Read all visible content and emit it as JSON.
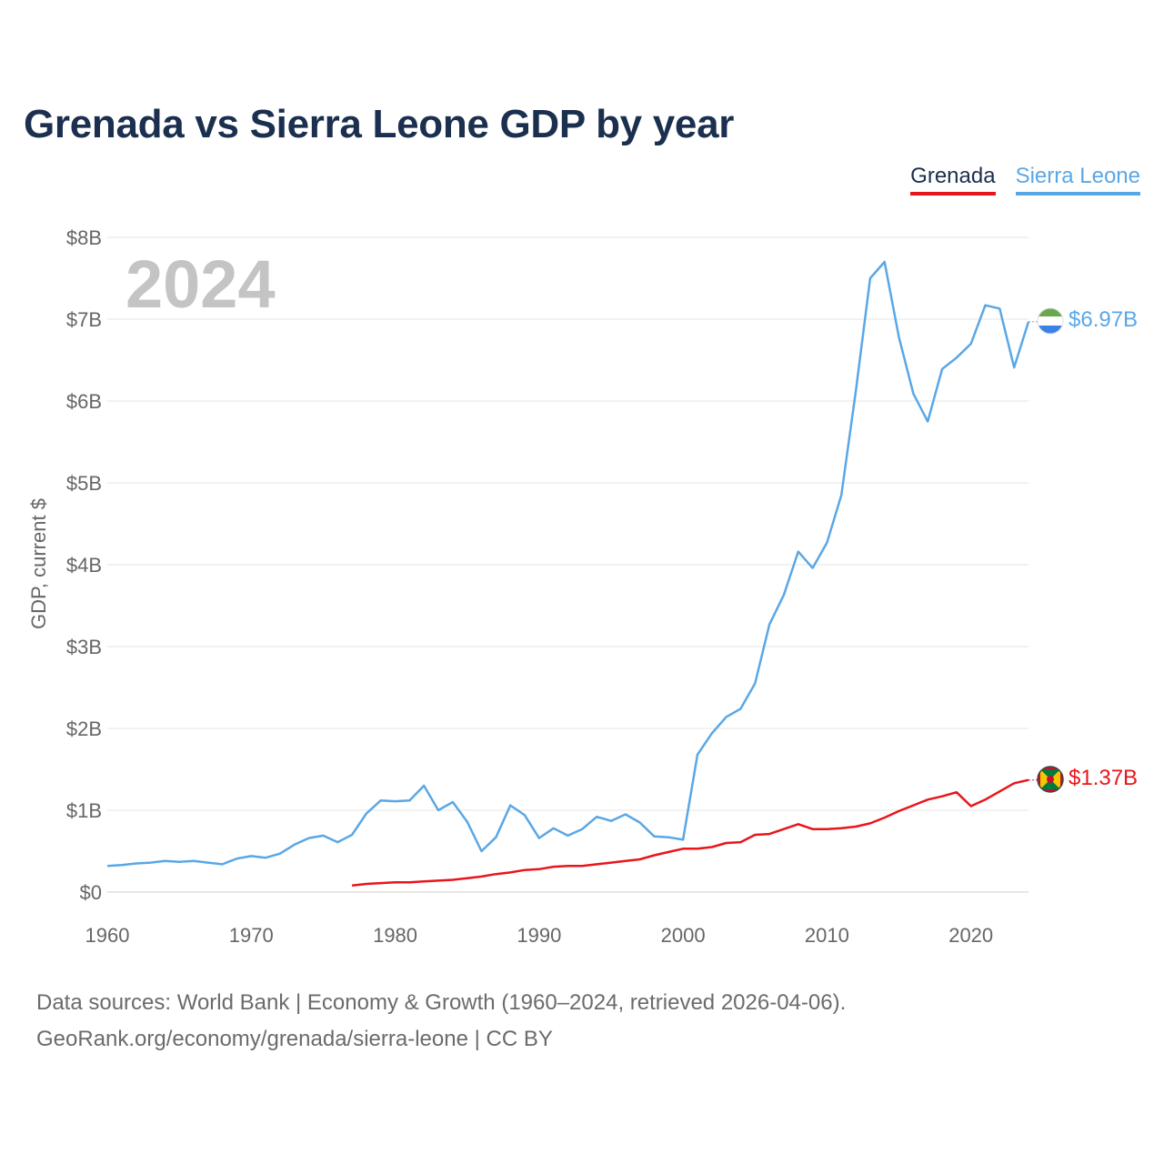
{
  "header": {
    "title": "Grenada vs Sierra Leone GDP by year"
  },
  "legend": [
    {
      "name": "Grenada",
      "color": "#e8151b"
    },
    {
      "name": "Sierra Leone",
      "color": "#5aa7e6"
    }
  ],
  "chart_data": {
    "type": "line",
    "title": "Grenada vs Sierra Leone GDP by year",
    "xlabel": "",
    "ylabel": "GDP, current $",
    "xlim": [
      1960,
      2024
    ],
    "ylim": [
      0,
      8
    ],
    "unit": "billions USD",
    "grid": true,
    "legend_position": "top-right",
    "year_indicator": "2024",
    "x_ticks": [
      1960,
      1970,
      1980,
      1990,
      2000,
      2010,
      2020
    ],
    "x_tick_labels": [
      "1960",
      "1970",
      "1980",
      "1990",
      "2000",
      "2010",
      "2020"
    ],
    "y_ticks": [
      0,
      1,
      2,
      3,
      4,
      5,
      6,
      7,
      8
    ],
    "y_tick_labels": [
      "$0",
      "$1B",
      "$2B",
      "$3B",
      "$4B",
      "$5B",
      "$6B",
      "$7B",
      "$8B"
    ],
    "series": [
      {
        "name": "Sierra Leone",
        "color": "#5aa7e6",
        "end_label": "$6.97B",
        "flag": "sierra-leone-flag",
        "x": [
          1960,
          1961,
          1962,
          1963,
          1964,
          1965,
          1966,
          1967,
          1968,
          1969,
          1970,
          1971,
          1972,
          1973,
          1974,
          1975,
          1976,
          1977,
          1978,
          1979,
          1980,
          1981,
          1982,
          1983,
          1984,
          1985,
          1986,
          1987,
          1988,
          1989,
          1990,
          1991,
          1992,
          1993,
          1994,
          1995,
          1996,
          1997,
          1998,
          1999,
          2000,
          2001,
          2002,
          2003,
          2004,
          2005,
          2006,
          2007,
          2008,
          2009,
          2010,
          2011,
          2012,
          2013,
          2014,
          2015,
          2016,
          2017,
          2018,
          2019,
          2020,
          2021,
          2022,
          2023,
          2024
        ],
        "values": [
          0.32,
          0.33,
          0.35,
          0.36,
          0.38,
          0.37,
          0.38,
          0.36,
          0.34,
          0.41,
          0.44,
          0.42,
          0.47,
          0.58,
          0.66,
          0.69,
          0.61,
          0.7,
          0.96,
          1.12,
          1.11,
          1.12,
          1.3,
          1.0,
          1.1,
          0.86,
          0.5,
          0.67,
          1.06,
          0.94,
          0.66,
          0.78,
          0.69,
          0.77,
          0.92,
          0.87,
          0.95,
          0.85,
          0.68,
          0.67,
          0.64,
          1.68,
          1.94,
          2.14,
          2.24,
          2.55,
          3.27,
          3.63,
          4.16,
          3.96,
          4.27,
          4.85,
          6.12,
          7.5,
          7.7,
          6.78,
          6.09,
          5.75,
          6.39,
          6.53,
          6.7,
          7.17,
          7.13,
          6.41,
          6.97
        ]
      },
      {
        "name": "Grenada",
        "color": "#e8151b",
        "end_label": "$1.37B",
        "flag": "grenada-flag",
        "x": [
          1977,
          1978,
          1979,
          1980,
          1981,
          1982,
          1983,
          1984,
          1985,
          1986,
          1987,
          1988,
          1989,
          1990,
          1991,
          1992,
          1993,
          1994,
          1995,
          1996,
          1997,
          1998,
          1999,
          2000,
          2001,
          2002,
          2003,
          2004,
          2005,
          2006,
          2007,
          2008,
          2009,
          2010,
          2011,
          2012,
          2013,
          2014,
          2015,
          2016,
          2017,
          2018,
          2019,
          2020,
          2021,
          2022,
          2023,
          2024
        ],
        "values": [
          0.08,
          0.1,
          0.11,
          0.12,
          0.12,
          0.13,
          0.14,
          0.15,
          0.17,
          0.19,
          0.22,
          0.24,
          0.27,
          0.28,
          0.31,
          0.32,
          0.32,
          0.34,
          0.36,
          0.38,
          0.4,
          0.45,
          0.49,
          0.53,
          0.53,
          0.55,
          0.6,
          0.61,
          0.7,
          0.71,
          0.77,
          0.83,
          0.77,
          0.77,
          0.78,
          0.8,
          0.84,
          0.91,
          0.99,
          1.06,
          1.13,
          1.17,
          1.22,
          1.05,
          1.13,
          1.23,
          1.33,
          1.37
        ]
      }
    ]
  },
  "footer": {
    "line1": "Data sources: World Bank | Economy & Growth (1960–2024, retrieved 2026-04-06).",
    "line2": "GeoRank.org/economy/grenada/sierra-leone | CC BY"
  }
}
